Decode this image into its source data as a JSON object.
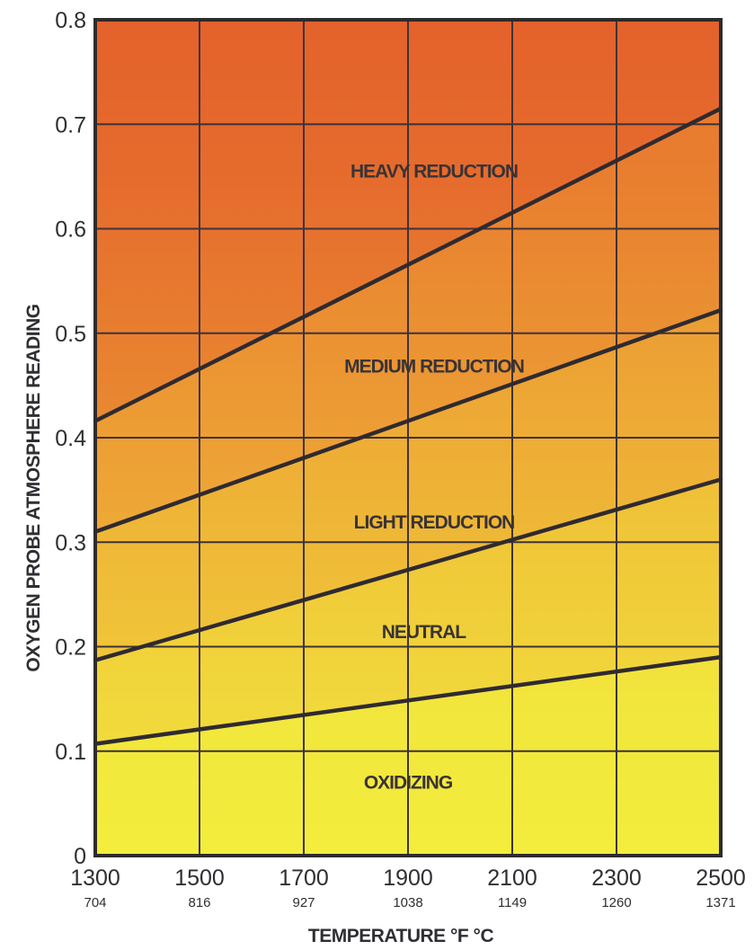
{
  "chart_data": {
    "type": "line",
    "title": "",
    "xlabel": "TEMPERATURE °F °C",
    "ylabel": "OXYGEN PROBE ATMOSPHERE READING",
    "xlim": [
      1300,
      2500
    ],
    "ylim": [
      0,
      0.8
    ],
    "grid": true,
    "x_ticks": [
      {
        "f": "1300",
        "c": "704"
      },
      {
        "f": "1500",
        "c": "816"
      },
      {
        "f": "1700",
        "c": "927"
      },
      {
        "f": "1900",
        "c": "1038"
      },
      {
        "f": "2100",
        "c": "1149"
      },
      {
        "f": "2300",
        "c": "1260"
      },
      {
        "f": "2500",
        "c": "1371"
      }
    ],
    "y_ticks": [
      "0",
      "0.1",
      "0.2",
      "0.3",
      "0.4",
      "0.5",
      "0.6",
      "0.7",
      "0.8"
    ],
    "boundaries": [
      {
        "x": [
          1300,
          2500
        ],
        "y": [
          0.107,
          0.19
        ]
      },
      {
        "x": [
          1300,
          2500
        ],
        "y": [
          0.187,
          0.36
        ]
      },
      {
        "x": [
          1300,
          2500
        ],
        "y": [
          0.31,
          0.522
        ]
      },
      {
        "x": [
          1300,
          2500
        ],
        "y": [
          0.416,
          0.715
        ]
      }
    ],
    "regions": [
      {
        "label": "OXIDIZING",
        "x": 1900,
        "y": 0.069,
        "color": "#f2ea3c"
      },
      {
        "label": "NEUTRAL",
        "x": 1930,
        "y": 0.213,
        "color": "#f0cd3a"
      },
      {
        "label": "LIGHT REDUCTION",
        "x": 1950,
        "y": 0.318,
        "color": "#eeae36"
      },
      {
        "label": "MEDIUM REDUCTION",
        "x": 1950,
        "y": 0.467,
        "color": "#ea8e32"
      },
      {
        "label": "HEAVY REDUCTION",
        "x": 1950,
        "y": 0.654,
        "color": "#e4632c"
      }
    ]
  }
}
